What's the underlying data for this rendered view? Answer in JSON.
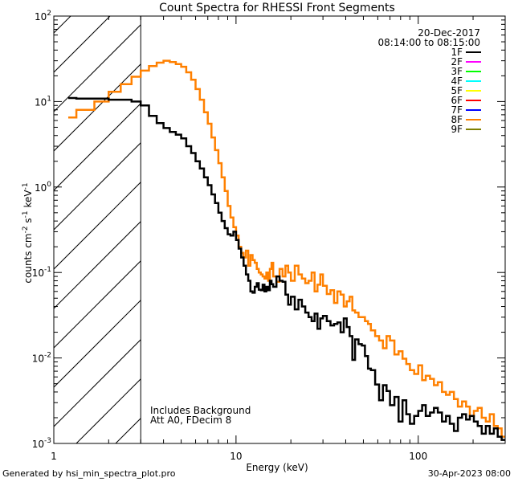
{
  "chart_data": {
    "type": "line",
    "title": "Count Spectra for RHESSI Front Segments",
    "xlabel": "Energy (keV)",
    "ylabel": "counts cm^-2 s^-1 keV^-1",
    "xscale": "log",
    "yscale": "log",
    "xlim": [
      1,
      300
    ],
    "ylim": [
      0.001,
      100
    ],
    "x_ticks": [
      {
        "value": 1,
        "label": "1"
      },
      {
        "value": 10,
        "label": "10"
      },
      {
        "value": 100,
        "label": "100"
      }
    ],
    "y_ticks": [
      {
        "value": 100,
        "base": "10",
        "exp": "2"
      },
      {
        "value": 10,
        "base": "10",
        "exp": "1"
      },
      {
        "value": 1,
        "base": "10",
        "exp": "0"
      },
      {
        "value": 0.1,
        "base": "10",
        "exp": "-1"
      },
      {
        "value": 0.01,
        "base": "10",
        "exp": "-2"
      },
      {
        "value": 0.001,
        "base": "10",
        "exp": "-3"
      }
    ],
    "attenuator_cutoff_kev": 3.0,
    "date": "20-Dec-2017",
    "time_range": "08:14:00 to 08:15:00",
    "annotations": [
      "Includes Background",
      "Att A0, FDecim 8"
    ],
    "legend": [
      {
        "name": "1F",
        "color": "#000000"
      },
      {
        "name": "2F",
        "color": "#ff00ff"
      },
      {
        "name": "3F",
        "color": "#00ff00"
      },
      {
        "name": "4F",
        "color": "#00ffff"
      },
      {
        "name": "5F",
        "color": "#ffff00"
      },
      {
        "name": "6F",
        "color": "#ff0000"
      },
      {
        "name": "7F",
        "color": "#0000ff"
      },
      {
        "name": "8F",
        "color": "#ff8000"
      },
      {
        "name": "9F",
        "color": "#7f7f00"
      }
    ],
    "series": [
      {
        "name": "1F",
        "color": "#000000",
        "x": [
          1.2,
          1.33,
          1.67,
          2.0,
          2.33,
          2.67,
          3.0,
          3.33,
          3.67,
          4.0,
          4.33,
          4.67,
          5.0,
          5.33,
          5.67,
          6.0,
          6.33,
          6.67,
          7.0,
          7.33,
          7.67,
          8.0,
          8.33,
          8.67,
          9.0,
          9.33,
          9.67,
          10.0,
          10.33,
          10.67,
          11.0,
          11.33,
          11.67,
          12.0,
          12.33,
          12.67,
          13.0,
          13.33,
          13.67,
          14.0,
          14.33,
          14.67,
          15.0,
          15.33,
          15.67,
          16.0,
          16.67,
          17.33,
          18.0,
          18.67,
          19.33,
          20.0,
          21.0,
          22.0,
          23.0,
          24.0,
          25.0,
          26.0,
          27.0,
          28.0,
          29.0,
          30.0,
          31.5,
          33.0,
          34.5,
          36.0,
          37.5,
          39.0,
          40.5,
          42.0,
          43.5,
          45.0,
          47.0,
          49.0,
          51.0,
          53.0,
          55.0,
          58.0,
          61.0,
          64.0,
          67.0,
          70.0,
          74.0,
          78.0,
          82.0,
          86.0,
          90.0,
          95.0,
          100.0,
          105.0,
          110.0,
          116.0,
          122.0,
          128.0,
          135.0,
          142.0,
          149.0,
          157.0,
          165.0,
          174.0,
          183.0,
          192.0,
          202.0,
          212.0,
          223.0,
          235.0,
          247.0,
          260.0,
          273.0,
          287.0
        ],
        "y": [
          11.0,
          10.8,
          10.8,
          10.5,
          10.5,
          10.0,
          9.0,
          6.8,
          5.6,
          4.9,
          4.4,
          4.1,
          3.7,
          3.0,
          2.5,
          2.0,
          1.65,
          1.3,
          1.05,
          0.82,
          0.65,
          0.5,
          0.4,
          0.33,
          0.28,
          0.27,
          0.3,
          0.24,
          0.19,
          0.15,
          0.12,
          0.095,
          0.08,
          0.06,
          0.058,
          0.068,
          0.075,
          0.063,
          0.062,
          0.072,
          0.06,
          0.068,
          0.062,
          0.08,
          0.073,
          0.068,
          0.09,
          0.08,
          0.078,
          0.055,
          0.042,
          0.052,
          0.037,
          0.048,
          0.04,
          0.034,
          0.03,
          0.027,
          0.033,
          0.022,
          0.029,
          0.031,
          0.027,
          0.024,
          0.025,
          0.026,
          0.02,
          0.029,
          0.023,
          0.018,
          0.0095,
          0.0165,
          0.0145,
          0.014,
          0.0105,
          0.0075,
          0.0072,
          0.0049,
          0.0032,
          0.0048,
          0.0041,
          0.0028,
          0.0035,
          0.0018,
          0.0032,
          0.0022,
          0.0017,
          0.0021,
          0.0024,
          0.0028,
          0.0021,
          0.0023,
          0.0026,
          0.0023,
          0.0018,
          0.0021,
          0.0017,
          0.0014,
          0.002,
          0.0022,
          0.0019,
          0.0021,
          0.0018,
          0.0016,
          0.0013,
          0.0016,
          0.0013,
          0.0015,
          0.0012,
          0.0011
        ]
      },
      {
        "name": "8F",
        "color": "#ff8000",
        "x": [
          1.2,
          1.33,
          1.67,
          2.0,
          2.33,
          2.67,
          3.0,
          3.33,
          3.67,
          4.0,
          4.33,
          4.67,
          5.0,
          5.33,
          5.67,
          6.0,
          6.33,
          6.67,
          7.0,
          7.33,
          7.67,
          8.0,
          8.33,
          8.67,
          9.0,
          9.33,
          9.67,
          10.0,
          10.33,
          10.67,
          11.0,
          11.33,
          11.67,
          12.0,
          12.33,
          12.67,
          13.0,
          13.33,
          13.67,
          14.0,
          14.33,
          14.67,
          15.0,
          15.33,
          15.67,
          16.0,
          16.67,
          17.33,
          18.0,
          18.67,
          19.33,
          20.0,
          21.0,
          22.0,
          23.0,
          24.0,
          25.0,
          26.0,
          27.0,
          28.0,
          29.0,
          30.0,
          31.5,
          33.0,
          34.5,
          36.0,
          37.5,
          39.0,
          40.5,
          42.0,
          43.5,
          45.0,
          47.0,
          49.0,
          51.0,
          53.0,
          55.0,
          58.0,
          61.0,
          64.0,
          67.0,
          70.0,
          74.0,
          78.0,
          82.0,
          86.0,
          90.0,
          95.0,
          100.0,
          105.0,
          110.0,
          116.0,
          122.0,
          128.0,
          135.0,
          142.0,
          149.0,
          157.0,
          165.0,
          174.0,
          183.0,
          192.0,
          202.0,
          212.0,
          223.0,
          235.0,
          247.0,
          260.0,
          273.0,
          287.0
        ],
        "y": [
          6.5,
          8.0,
          10.0,
          13.0,
          16.0,
          19.5,
          23.0,
          26.0,
          28.5,
          30.0,
          29.0,
          27.5,
          25.5,
          22.0,
          18.0,
          14.0,
          10.5,
          7.5,
          5.5,
          3.8,
          2.7,
          1.9,
          1.3,
          0.9,
          0.6,
          0.44,
          0.34,
          0.27,
          0.2,
          0.17,
          0.15,
          0.18,
          0.12,
          0.16,
          0.14,
          0.13,
          0.11,
          0.1,
          0.095,
          0.09,
          0.085,
          0.1,
          0.08,
          0.11,
          0.13,
          0.09,
          0.078,
          0.11,
          0.09,
          0.12,
          0.1,
          0.08,
          0.12,
          0.095,
          0.085,
          0.075,
          0.08,
          0.1,
          0.06,
          0.072,
          0.095,
          0.07,
          0.056,
          0.062,
          0.044,
          0.06,
          0.055,
          0.04,
          0.046,
          0.052,
          0.036,
          0.034,
          0.03,
          0.03,
          0.027,
          0.025,
          0.021,
          0.018,
          0.016,
          0.013,
          0.018,
          0.016,
          0.011,
          0.012,
          0.0098,
          0.0085,
          0.0072,
          0.0065,
          0.0082,
          0.0055,
          0.0062,
          0.0057,
          0.0048,
          0.0052,
          0.004,
          0.0037,
          0.004,
          0.0033,
          0.0027,
          0.0031,
          0.0027,
          0.0021,
          0.0024,
          0.0026,
          0.002,
          0.0018,
          0.0022,
          0.0016,
          0.0015,
          0.0012
        ]
      }
    ]
  },
  "footer": {
    "generated_by": "Generated by hsi_min_spectra_plot.pro",
    "timestamp": "30-Apr-2023 08:00"
  }
}
